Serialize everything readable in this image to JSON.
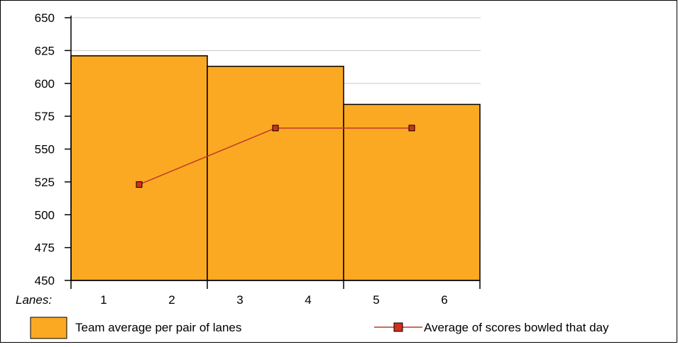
{
  "chart_data": {
    "type": "bar",
    "x_axis_prefix": "Lanes:",
    "x_tick_labels": [
      "1",
      "2",
      "3",
      "4",
      "5",
      "6"
    ],
    "ylim": [
      450,
      650
    ],
    "y_ticks": [
      450,
      475,
      500,
      525,
      550,
      575,
      600,
      625,
      650
    ],
    "grid": true,
    "bar_series": {
      "name": "Team average per pair of lanes",
      "lane_pairs": [
        [
          1,
          2
        ],
        [
          3,
          4
        ],
        [
          5,
          6
        ]
      ],
      "values": [
        621,
        613,
        584
      ]
    },
    "line_series": {
      "name": "Average of scores bowled that day",
      "values": [
        523,
        566,
        566
      ]
    },
    "colors": {
      "bar_fill": "#FBA922",
      "bar_stroke": "#000000",
      "line": "#C0392B",
      "marker_fill": "#D32F1E",
      "grid": "#C8C8C8"
    }
  }
}
